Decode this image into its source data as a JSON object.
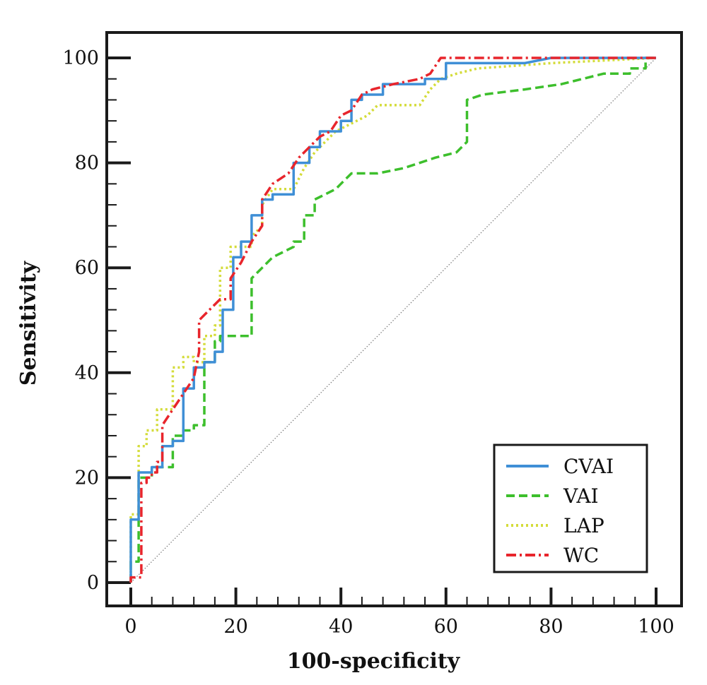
{
  "chart_data": {
    "type": "line",
    "xlabel": "100-specificity",
    "ylabel": "Sensitivity",
    "xlim": [
      0,
      100
    ],
    "ylim": [
      0,
      100
    ],
    "x_ticks": [
      "0",
      "20",
      "40",
      "60",
      "80",
      "100"
    ],
    "y_ticks": [
      "0",
      "20",
      "40",
      "60",
      "80",
      "100"
    ],
    "grid": false,
    "legend": {
      "position": "bottom-right",
      "entries": [
        "CVAI",
        "VAI",
        "LAP",
        "WC"
      ]
    },
    "reference_line": {
      "from": [
        0,
        0
      ],
      "to": [
        100,
        100
      ],
      "color": "#777777",
      "style": "dotted"
    },
    "series": [
      {
        "name": "CVAI",
        "color": "#3f8fd6",
        "style": "solid",
        "points": [
          [
            0,
            0
          ],
          [
            0,
            12
          ],
          [
            1.5,
            12
          ],
          [
            1.5,
            21
          ],
          [
            4,
            21
          ],
          [
            4,
            22
          ],
          [
            6,
            22
          ],
          [
            6,
            26
          ],
          [
            8,
            26
          ],
          [
            8,
            27
          ],
          [
            10,
            27
          ],
          [
            10,
            37
          ],
          [
            12,
            37
          ],
          [
            12,
            41
          ],
          [
            14,
            41
          ],
          [
            14,
            42
          ],
          [
            16,
            42
          ],
          [
            16,
            44
          ],
          [
            17.5,
            44
          ],
          [
            17.5,
            52
          ],
          [
            19.5,
            52
          ],
          [
            19.5,
            62
          ],
          [
            21,
            62
          ],
          [
            21,
            65
          ],
          [
            23,
            65
          ],
          [
            23,
            70
          ],
          [
            25,
            70
          ],
          [
            25,
            73
          ],
          [
            27,
            73
          ],
          [
            27,
            74
          ],
          [
            29,
            74
          ],
          [
            29,
            74
          ],
          [
            31,
            74
          ],
          [
            31,
            80
          ],
          [
            34,
            80
          ],
          [
            34,
            83
          ],
          [
            36,
            83
          ],
          [
            36,
            86
          ],
          [
            40,
            86
          ],
          [
            40,
            88
          ],
          [
            42,
            88
          ],
          [
            42,
            92
          ],
          [
            44,
            92
          ],
          [
            44,
            93
          ],
          [
            48,
            93
          ],
          [
            48,
            95
          ],
          [
            56,
            95
          ],
          [
            56,
            96
          ],
          [
            60,
            96
          ],
          [
            60,
            99
          ],
          [
            75,
            99
          ],
          [
            80,
            100
          ],
          [
            100,
            100
          ]
        ]
      },
      {
        "name": "VAI",
        "color": "#3dbf2c",
        "style": "dashed",
        "points": [
          [
            0,
            0
          ],
          [
            0,
            4
          ],
          [
            1.5,
            4
          ],
          [
            1.5,
            20
          ],
          [
            4,
            20
          ],
          [
            4,
            22
          ],
          [
            8,
            22
          ],
          [
            8,
            28
          ],
          [
            10,
            28
          ],
          [
            10,
            29
          ],
          [
            12,
            29
          ],
          [
            12,
            30
          ],
          [
            14,
            30
          ],
          [
            14,
            42
          ],
          [
            16,
            42
          ],
          [
            16,
            46
          ],
          [
            17,
            46
          ],
          [
            17,
            47
          ],
          [
            23,
            47
          ],
          [
            23,
            58
          ],
          [
            25,
            60
          ],
          [
            27,
            62
          ],
          [
            29,
            63
          ],
          [
            31,
            64
          ],
          [
            31,
            65
          ],
          [
            33,
            65
          ],
          [
            33,
            70
          ],
          [
            35,
            70
          ],
          [
            35,
            73
          ],
          [
            37,
            74
          ],
          [
            39,
            75
          ],
          [
            40,
            76
          ],
          [
            42,
            78
          ],
          [
            47,
            78
          ],
          [
            52,
            79
          ],
          [
            58,
            81
          ],
          [
            62,
            82
          ],
          [
            64,
            84
          ],
          [
            64,
            92
          ],
          [
            67,
            93
          ],
          [
            75,
            94
          ],
          [
            82,
            95
          ],
          [
            90,
            97
          ],
          [
            95,
            97
          ],
          [
            95,
            98
          ],
          [
            98,
            98
          ],
          [
            98,
            100
          ],
          [
            100,
            100
          ]
        ]
      },
      {
        "name": "LAP",
        "color": "#d4dc3a",
        "style": "dotted",
        "points": [
          [
            0,
            0
          ],
          [
            0,
            13
          ],
          [
            1.5,
            13
          ],
          [
            1.5,
            26
          ],
          [
            3,
            26
          ],
          [
            3,
            29
          ],
          [
            5,
            29
          ],
          [
            5,
            33
          ],
          [
            8,
            33
          ],
          [
            8,
            41
          ],
          [
            10,
            41
          ],
          [
            10,
            43
          ],
          [
            12,
            43
          ],
          [
            12,
            42
          ],
          [
            14,
            42
          ],
          [
            14,
            47
          ],
          [
            16,
            47
          ],
          [
            16,
            49
          ],
          [
            17,
            49
          ],
          [
            17,
            60
          ],
          [
            19,
            60
          ],
          [
            19,
            64
          ],
          [
            21,
            64
          ],
          [
            21,
            64
          ],
          [
            23,
            64
          ],
          [
            23,
            66
          ],
          [
            25,
            68
          ],
          [
            25,
            72
          ],
          [
            27,
            75
          ],
          [
            31,
            75
          ],
          [
            33,
            79
          ],
          [
            35,
            82
          ],
          [
            37,
            84
          ],
          [
            39,
            86
          ],
          [
            41,
            87
          ],
          [
            45,
            89
          ],
          [
            47,
            91
          ],
          [
            55,
            91
          ],
          [
            57,
            94
          ],
          [
            59,
            96
          ],
          [
            62,
            97
          ],
          [
            66,
            98
          ],
          [
            80,
            99
          ],
          [
            100,
            100
          ]
        ]
      },
      {
        "name": "WC",
        "color": "#e8252c",
        "style": "dashdot",
        "points": [
          [
            0,
            0
          ],
          [
            0,
            1
          ],
          [
            2,
            1
          ],
          [
            2,
            19
          ],
          [
            3,
            19
          ],
          [
            3,
            20
          ],
          [
            4,
            20
          ],
          [
            4,
            21
          ],
          [
            5,
            21
          ],
          [
            5,
            23
          ],
          [
            6,
            23
          ],
          [
            6,
            30
          ],
          [
            8,
            33
          ],
          [
            10,
            36
          ],
          [
            12,
            39
          ],
          [
            13,
            44
          ],
          [
            13,
            50
          ],
          [
            15,
            52
          ],
          [
            17,
            54
          ],
          [
            19,
            54
          ],
          [
            19,
            58
          ],
          [
            21,
            61
          ],
          [
            23,
            65
          ],
          [
            25,
            68
          ],
          [
            25,
            73
          ],
          [
            27,
            76
          ],
          [
            30,
            78
          ],
          [
            32,
            81
          ],
          [
            34,
            83
          ],
          [
            36,
            85
          ],
          [
            38,
            86
          ],
          [
            40,
            89
          ],
          [
            42,
            90
          ],
          [
            44,
            93
          ],
          [
            46,
            94
          ],
          [
            50,
            95
          ],
          [
            55,
            96
          ],
          [
            57,
            97
          ],
          [
            59,
            100
          ],
          [
            70,
            100
          ],
          [
            80,
            100
          ],
          [
            100,
            100
          ]
        ]
      }
    ]
  }
}
